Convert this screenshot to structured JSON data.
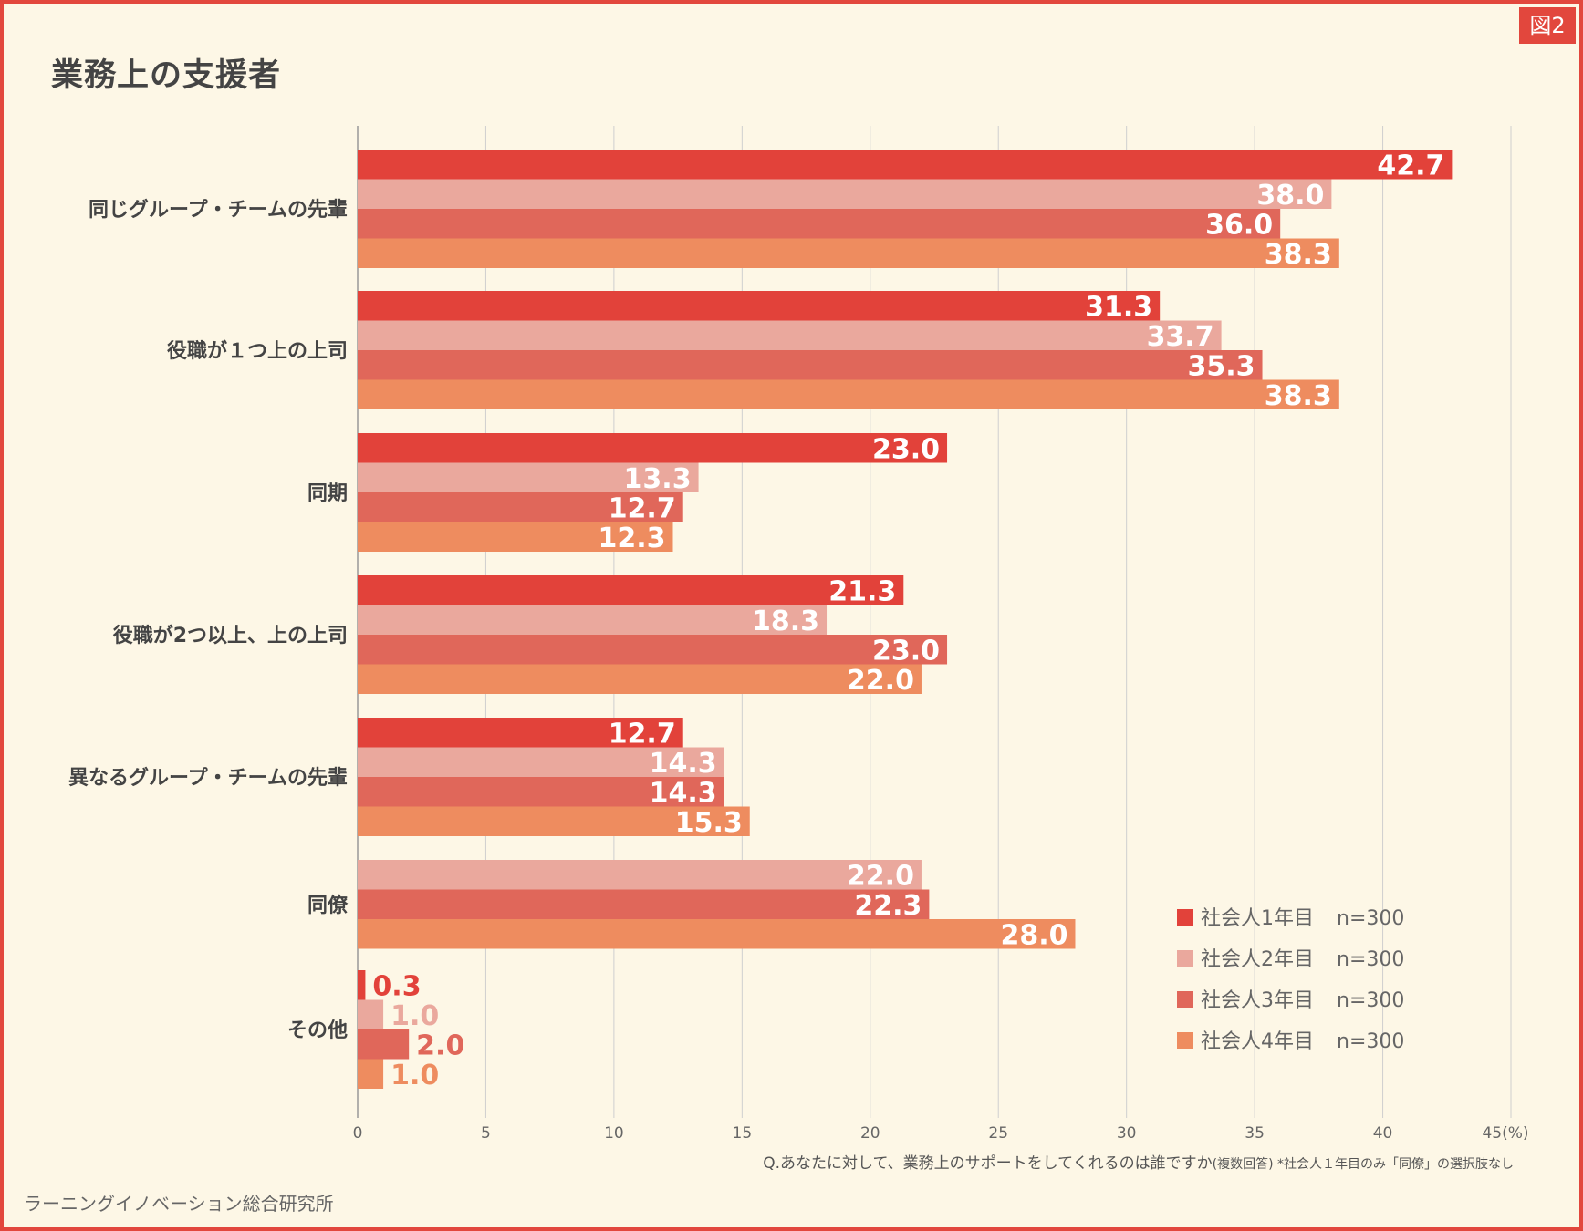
{
  "badge": "図2",
  "title": "業務上の支援者",
  "question": "Q.あなたに対して、業務上のサポートをしてくれるのは誰ですか",
  "question_note": "(複数回答) *社会人１年目のみ「同僚」の選択肢なし",
  "source": "ラーニングイノベーション総合研究所",
  "chart_data": {
    "type": "bar",
    "orientation": "horizontal",
    "xlim": [
      0,
      45
    ],
    "x_ticks": [
      "0",
      "5",
      "10",
      "15",
      "20",
      "25",
      "30",
      "35",
      "40",
      "45(%)"
    ],
    "grid": true,
    "legend_position": "bottom-right",
    "categories": [
      "同じグループ・チームの先輩",
      "役職が１つ上の上司",
      "同期",
      "役職が2つ以上、上の上司",
      "異なるグループ・チームの先輩",
      "同僚",
      "その他"
    ],
    "series": [
      {
        "name": "社会人1年目",
        "n": "n=300",
        "color": "#e2423a",
        "values": [
          42.7,
          31.3,
          23.0,
          21.3,
          12.7,
          null,
          0.3
        ]
      },
      {
        "name": "社会人2年目",
        "n": "n=300",
        "color": "#eaa89d",
        "values": [
          38.0,
          33.7,
          13.3,
          18.3,
          14.3,
          22.0,
          1.0
        ]
      },
      {
        "name": "社会人3年目",
        "n": "n=300",
        "color": "#e0675a",
        "values": [
          36.0,
          35.3,
          12.7,
          23.0,
          14.3,
          22.3,
          2.0
        ]
      },
      {
        "name": "社会人4年目",
        "n": "n=300",
        "color": "#ee8c5f",
        "values": [
          38.3,
          38.3,
          12.3,
          22.0,
          15.3,
          28.0,
          1.0
        ]
      }
    ]
  }
}
